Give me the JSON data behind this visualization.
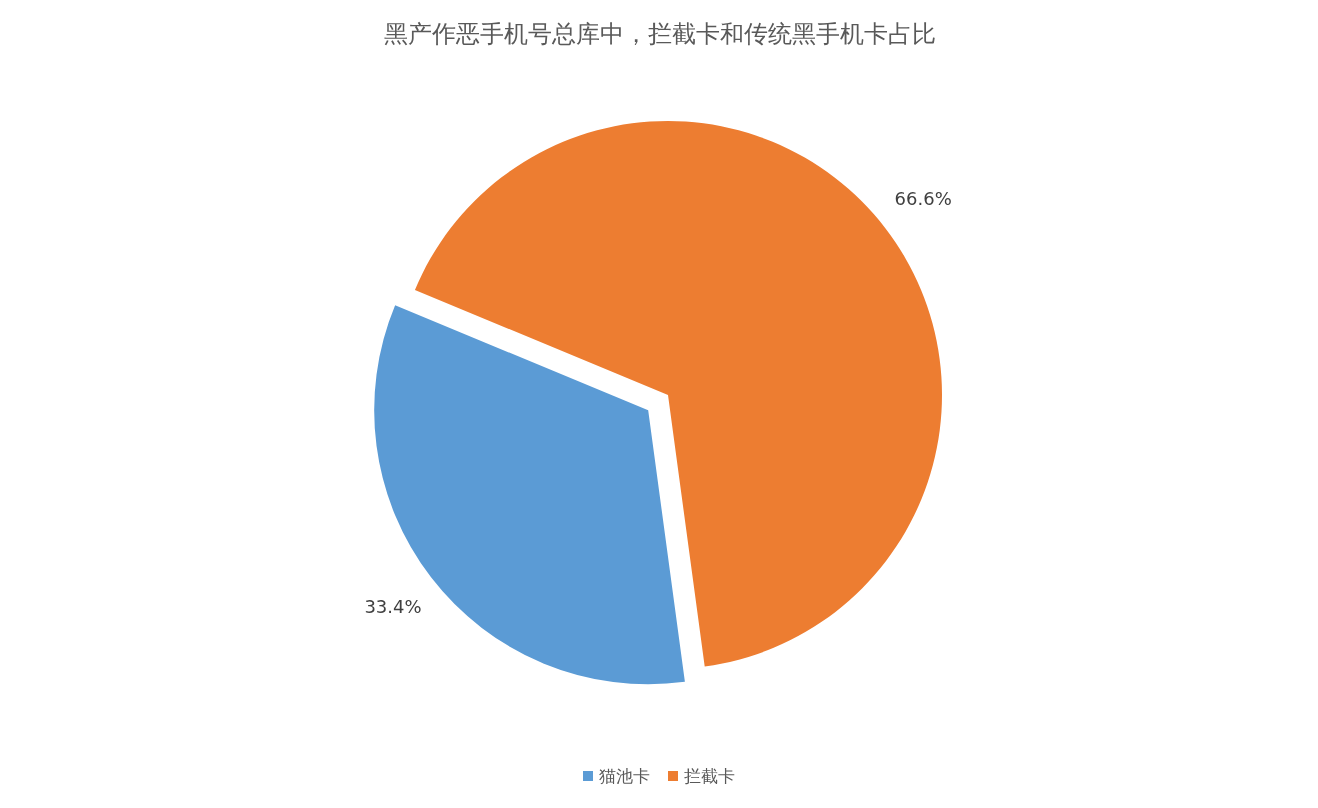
{
  "chart_data": {
    "type": "pie",
    "title": "黑产作恶手机号总库中，拦截卡和传统黑手机卡占比",
    "categories": [
      "猫池卡",
      "拦截卡"
    ],
    "values": [
      33.4,
      66.6
    ],
    "colors": [
      "#5b9bd5",
      "#ed7d31"
    ],
    "value_labels": [
      "33.4%",
      "66.6%"
    ],
    "legend": "bottom"
  }
}
